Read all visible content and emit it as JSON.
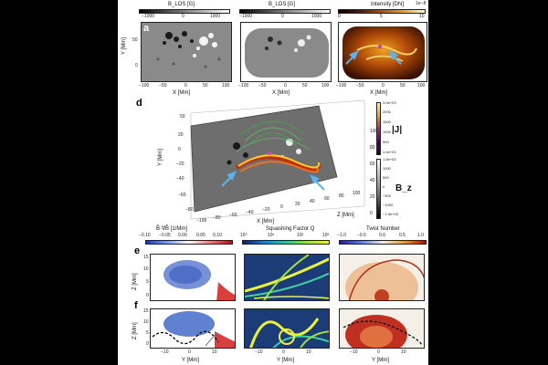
{
  "panels": {
    "a": {
      "label": "a",
      "colorbar_label": "B_LOS [G]",
      "colorbar_ticks": [
        "−1000",
        "0",
        "1000"
      ],
      "xlabel": "X [Mm]",
      "ylabel": "Y [Mm]",
      "xticks": [
        "−100",
        "−50",
        "0",
        "50",
        "100"
      ],
      "yticks": [
        "0",
        "50"
      ]
    },
    "b": {
      "label": "b",
      "colorbar_label": "B_LOS [G]",
      "colorbar_ticks": [
        "−1000",
        "0",
        "1000"
      ],
      "xlabel": "X [Mm]",
      "xticks": [
        "−100",
        "−50",
        "0",
        "50",
        "100"
      ]
    },
    "c": {
      "label": "c",
      "colorbar_label": "Intensity [DN]",
      "colorbar_exp": "1e−8",
      "colorbar_ticks": [
        "0",
        "5",
        "10"
      ],
      "xlabel": "X [Mm]",
      "xticks": [
        "−100",
        "−50",
        "0",
        "50",
        "100"
      ]
    },
    "d": {
      "label": "d",
      "xlabel": "X [Mm]",
      "ylabel": "Y [Mm]",
      "zlabel": "Z [Mm]",
      "side_label_j": "|J|",
      "side_label_b": "B_z",
      "j_ticks": [
        "3.0e+03",
        "2000",
        "1500",
        "1000",
        "500",
        "1.0e+03"
      ],
      "b_ticks": [
        "1.5e+03",
        "1000",
        "500",
        "0",
        "−500",
        "−1000",
        "−1.5e+03"
      ],
      "xticks": [
        "−100",
        "−80",
        "−60",
        "−40",
        "−20",
        "0",
        "20",
        "40",
        "60",
        "80",
        "100"
      ],
      "yticks": [
        "50",
        "20",
        "0",
        "−20",
        "−40",
        "−60",
        "−80"
      ],
      "zticks": [
        "0",
        "20",
        "40",
        "60",
        "80",
        "100"
      ]
    },
    "e": {
      "label": "e"
    },
    "f": {
      "label": "f"
    }
  },
  "row_headers": {
    "col1": {
      "title": "B̂·∇B̂ [1/Mm]",
      "ticks": [
        "−0.10",
        "−0.05",
        "0.00",
        "0.05",
        "0.10"
      ]
    },
    "col2": {
      "title": "Squashing Factor Q",
      "ticks": [
        "10⁰",
        "10¹",
        "10²",
        "10³"
      ]
    },
    "col3": {
      "title": "Twist Number",
      "ticks": [
        "−1.0",
        "−0.5",
        "0.0",
        "0.5",
        "1.0"
      ]
    }
  },
  "bottom_axes": {
    "ylabel": "Z [Mm]",
    "yticks": [
      "15",
      "10",
      "5",
      "0"
    ],
    "xlabel": "Y [Mm]",
    "xticks": [
      "−10",
      "0",
      "10"
    ]
  },
  "colors": {
    "arrow": "#5ab4f0",
    "page_bg": "#ffffff",
    "outer_bg": "#000000"
  }
}
